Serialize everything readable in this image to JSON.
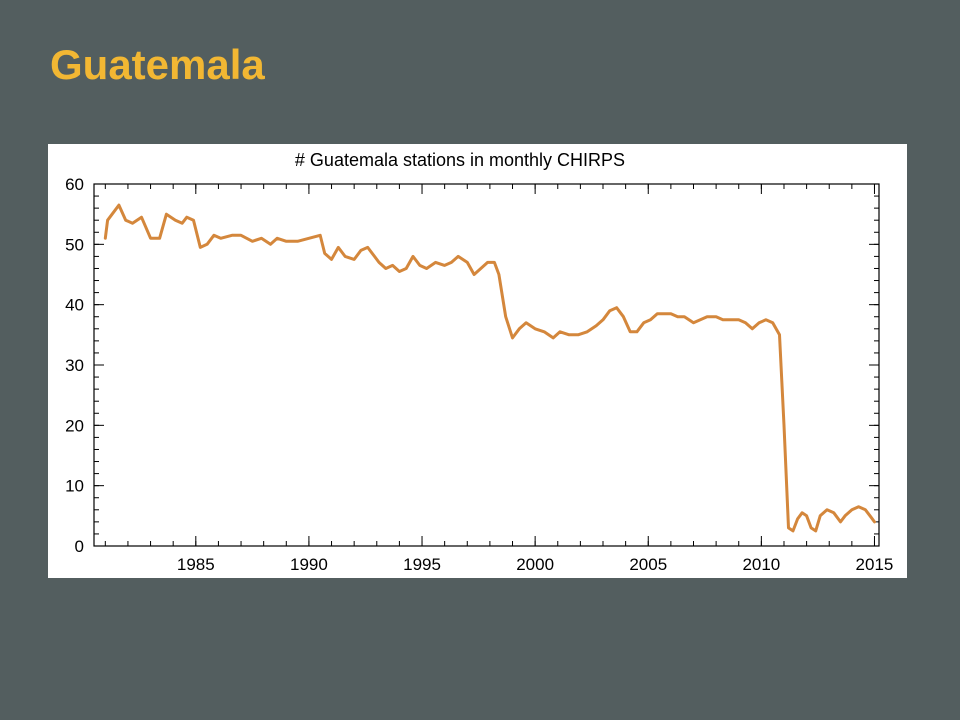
{
  "slide": {
    "title": "Guatemala"
  },
  "colors": {
    "background": "#535e5f",
    "title": "#f2b733",
    "line": "#d4873c"
  },
  "chart_data": {
    "type": "line",
    "title": "# Guatemala stations in monthly CHIRPS",
    "xlabel": "",
    "ylabel": "",
    "xlim": [
      1980.5,
      2015.2
    ],
    "ylim": [
      0,
      60
    ],
    "xticks": [
      1985,
      1990,
      1995,
      2000,
      2005,
      2010,
      2015
    ],
    "yticks": [
      0,
      10,
      20,
      30,
      40,
      50,
      60
    ],
    "grid": false,
    "series": [
      {
        "name": "",
        "color": "#d4873c",
        "x": [
          1981.0,
          1981.1,
          1981.3,
          1981.6,
          1981.9,
          1982.2,
          1982.6,
          1983.0,
          1983.2,
          1983.4,
          1983.7,
          1983.9,
          1984.1,
          1984.4,
          1984.6,
          1984.9,
          1985.2,
          1985.5,
          1985.8,
          1986.1,
          1986.6,
          1987.0,
          1987.5,
          1987.9,
          1988.3,
          1988.6,
          1989.0,
          1989.5,
          1990.0,
          1990.5,
          1990.7,
          1991.0,
          1991.3,
          1991.6,
          1992.0,
          1992.3,
          1992.6,
          1992.9,
          1993.1,
          1993.4,
          1993.7,
          1994.0,
          1994.3,
          1994.6,
          1994.9,
          1995.2,
          1995.6,
          1996.0,
          1996.3,
          1996.6,
          1997.0,
          1997.3,
          1997.6,
          1997.9,
          1998.2,
          1998.4,
          1998.7,
          1999.0,
          1999.3,
          1999.6,
          2000.0,
          2000.4,
          2000.8,
          2001.1,
          2001.5,
          2001.9,
          2002.3,
          2002.7,
          2003.0,
          2003.3,
          2003.6,
          2003.9,
          2004.2,
          2004.5,
          2004.8,
          2005.1,
          2005.4,
          2005.7,
          2006.0,
          2006.3,
          2006.6,
          2007.0,
          2007.3,
          2007.6,
          2008.0,
          2008.3,
          2008.6,
          2009.0,
          2009.3,
          2009.6,
          2009.9,
          2010.2,
          2010.5,
          2010.8,
          2011.0,
          2011.2,
          2011.4,
          2011.6,
          2011.8,
          2012.0,
          2012.2,
          2012.4,
          2012.6,
          2012.9,
          2013.2,
          2013.5,
          2013.7,
          2014.0,
          2014.3,
          2014.6,
          2014.8,
          2015.0
        ],
        "values": [
          51,
          54,
          55,
          56.5,
          54,
          53.5,
          54.5,
          51,
          51,
          51,
          55,
          54.5,
          54,
          53.5,
          54.5,
          54,
          49.5,
          50,
          51.5,
          51,
          51.5,
          51.5,
          50.5,
          51,
          50,
          51,
          50.5,
          50.5,
          51,
          51.5,
          48.5,
          47.5,
          49.5,
          48,
          47.5,
          49,
          49.5,
          48,
          47,
          46,
          46.5,
          45.5,
          46,
          48,
          46.5,
          46,
          47,
          46.5,
          47,
          48,
          47,
          45,
          46,
          47,
          47,
          45,
          38,
          34.5,
          36,
          37,
          36,
          35.5,
          34.5,
          35.5,
          35,
          35,
          35.5,
          36.5,
          37.5,
          39,
          39.5,
          38,
          35.5,
          35.5,
          37,
          37.5,
          38.5,
          38.5,
          38.5,
          38,
          38,
          37,
          37.5,
          38,
          38,
          37.5,
          37.5,
          37.5,
          37,
          36,
          37,
          37.5,
          37,
          35,
          20,
          3,
          2.5,
          4.5,
          5.5,
          5,
          3,
          2.5,
          5,
          6,
          5.5,
          4,
          5,
          6,
          6.5,
          6,
          5,
          4
        ]
      }
    ]
  }
}
